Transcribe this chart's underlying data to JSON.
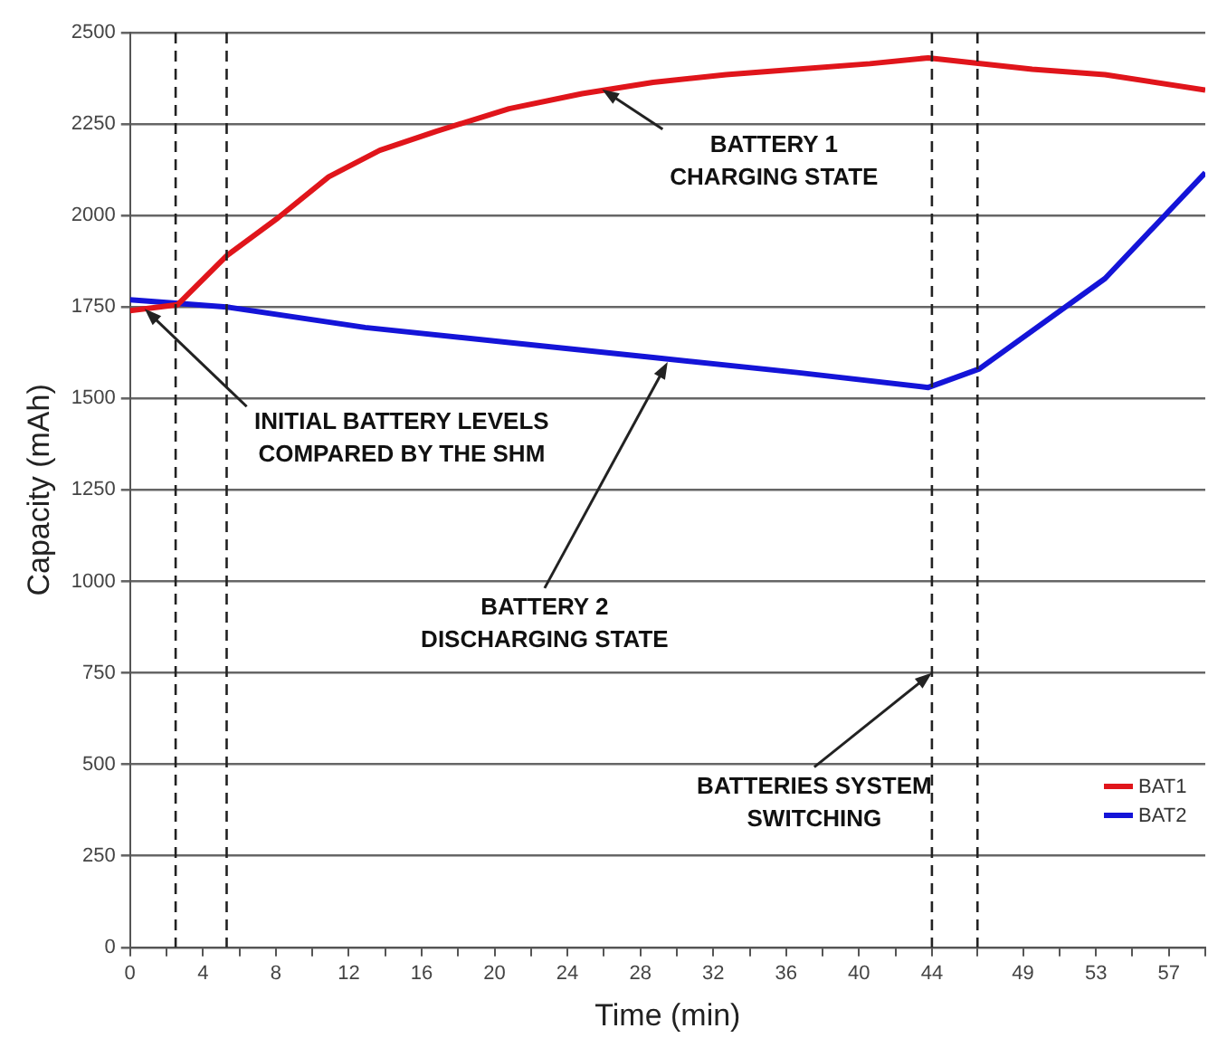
{
  "chart_data": {
    "type": "line",
    "xlabel": "Time (min)",
    "ylabel": "Capacity (mAh)",
    "xlim": [
      0,
      59
    ],
    "xticks": [
      0,
      {
        "value": 2,
        "label": null
      },
      4,
      {
        "value": 6,
        "label": null
      },
      8,
      {
        "value": 10,
        "label": null
      },
      12,
      {
        "value": 14,
        "label": null
      },
      16,
      {
        "value": 18,
        "label": null
      },
      20,
      {
        "value": 22,
        "label": null
      },
      24,
      {
        "value": 26,
        "label": null
      },
      28,
      {
        "value": 30,
        "label": null
      },
      32,
      {
        "value": 34,
        "label": null
      },
      36,
      {
        "value": 38,
        "label": null
      },
      40,
      {
        "value": 42,
        "label": null
      },
      44,
      {
        "value": 46.5,
        "label": null
      },
      49,
      {
        "value": 51,
        "label": null
      },
      53,
      {
        "value": 55,
        "label": null
      },
      57,
      {
        "value": 59,
        "label": null
      }
    ],
    "ylim": [
      0,
      2500
    ],
    "yticks": [
      0,
      250,
      500,
      750,
      1000,
      1250,
      1500,
      1750,
      2000,
      2250,
      2500
    ],
    "grid": "y",
    "legend": "bottom right",
    "marker": "none",
    "line_style": "solid",
    "series": [
      {
        "name": "BAT1",
        "color": "#e0151b",
        "x": [
          0,
          2.6,
          5.3,
          8.1,
          10.9,
          13.7,
          16.8,
          20.8,
          24.8,
          28.7,
          32.7,
          36.6,
          40.6,
          43.8,
          49.5,
          53.5,
          59
        ],
        "values": [
          1740,
          1756,
          1890,
          1993,
          2106,
          2178,
          2230,
          2292,
          2333,
          2364,
          2385,
          2400,
          2415,
          2431,
          2400,
          2385,
          2343
        ]
      },
      {
        "name": "BAT2",
        "color": "#1414d8",
        "x": [
          0,
          5.3,
          12.9,
          20.8,
          28.7,
          36.6,
          43.8,
          46.6,
          53.5,
          59
        ],
        "values": [
          1770,
          1750,
          1694,
          1653,
          1612,
          1571,
          1530,
          1581,
          1828,
          2117
        ]
      }
    ],
    "ref_lines": [
      {
        "axis": "x",
        "value": 2.5,
        "color": "#222222",
        "line_style": "dashed"
      },
      {
        "axis": "x",
        "value": 5.3,
        "color": "#222222",
        "line_style": "dashed"
      },
      {
        "axis": "x",
        "value": 44,
        "color": "#222222",
        "line_style": "dashed"
      },
      {
        "axis": "x",
        "value": 46.5,
        "color": "#222222",
        "line_style": "dashed"
      }
    ],
    "annotations": [
      {
        "text": "BATTERY 1\nCHARGING STATE",
        "x": 25.9,
        "y": 2345
      },
      {
        "text": "INITIAL BATTERY LEVELS\nCOMPARED BY THE SHM",
        "x": 0.8,
        "y": 1745
      },
      {
        "text": "BATTERY 2\nDISCHARGING STATE",
        "x": 29.5,
        "y": 1600
      },
      {
        "text": "BATTERIES SYSTEM\nSWITCHING",
        "x": 44,
        "y": 750
      }
    ]
  }
}
